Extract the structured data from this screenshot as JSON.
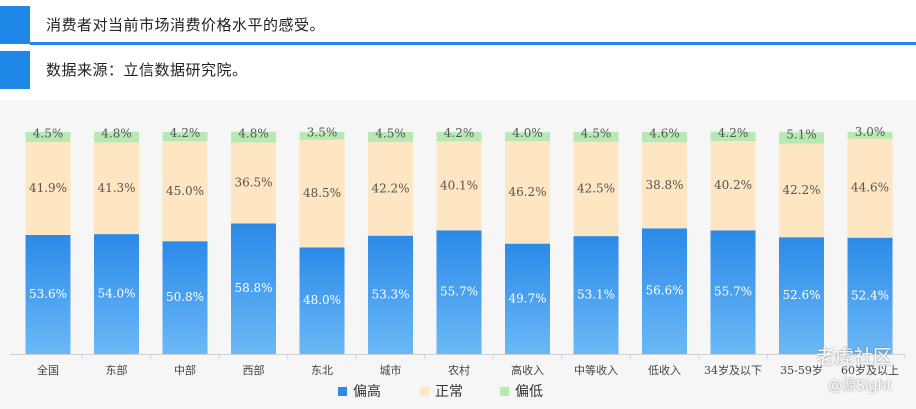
{
  "header": {
    "title": "消费者对当前市场消费价格水平的感受。",
    "source": "数据来源：立信数据研究院。"
  },
  "colors": {
    "accent": "#1f87e8",
    "pian_gao_top": "#2b8ae8",
    "pian_gao_bottom": "#6bb8f6",
    "zheng_chang": "#fde6c1",
    "pian_di": "#b7e9b3"
  },
  "chart_data": {
    "type": "bar",
    "stacked": true,
    "categories": [
      "全国",
      "东部",
      "中部",
      "西部",
      "东北",
      "城市",
      "农村",
      "高收入",
      "中等收入",
      "低收入",
      "34岁及以下",
      "35-59岁",
      "60岁及以上"
    ],
    "series": [
      {
        "name": "偏高",
        "values": [
          53.6,
          54.0,
          50.8,
          58.8,
          48.0,
          53.3,
          55.7,
          49.7,
          53.1,
          56.6,
          55.7,
          52.6,
          52.4
        ]
      },
      {
        "name": "正常",
        "values": [
          41.9,
          41.3,
          45.0,
          36.5,
          48.5,
          42.2,
          40.1,
          46.2,
          42.5,
          38.8,
          40.2,
          42.2,
          44.6
        ]
      },
      {
        "name": "偏低",
        "values": [
          4.5,
          4.8,
          4.2,
          4.8,
          3.5,
          4.5,
          4.2,
          4.0,
          4.5,
          4.6,
          4.2,
          5.1,
          3.0
        ]
      }
    ],
    "value_labels": {
      "偏高": [
        "53.6%",
        "54.0%",
        "50.8%",
        "58.8%",
        "48.0%",
        "53.3%",
        "55.7%",
        "49.7%",
        "53.1%",
        "56.6%",
        "55.7%",
        "52.6%",
        "52.4%"
      ],
      "正常": [
        "41.9%",
        "41.3%",
        "45.0%",
        "36.5%",
        "48.5%",
        "42.2%",
        "40.1%",
        "46.2%",
        "42.5%",
        "38.8%",
        "40.2%",
        "42.2%",
        "44.6%"
      ],
      "偏低": [
        "4.5%",
        "4.8%",
        "4.2%",
        "4.8%",
        "3.5%",
        "4.5%",
        "4.2%",
        "4.0%",
        "4.5%",
        "4.6%",
        "4.2%",
        "5.1%",
        "3.0%"
      ]
    },
    "ylim": [
      0,
      100
    ],
    "grid": false,
    "legend_position": "bottom"
  },
  "watermark": {
    "line1": "老虎社区",
    "line2": "@源Sight"
  }
}
